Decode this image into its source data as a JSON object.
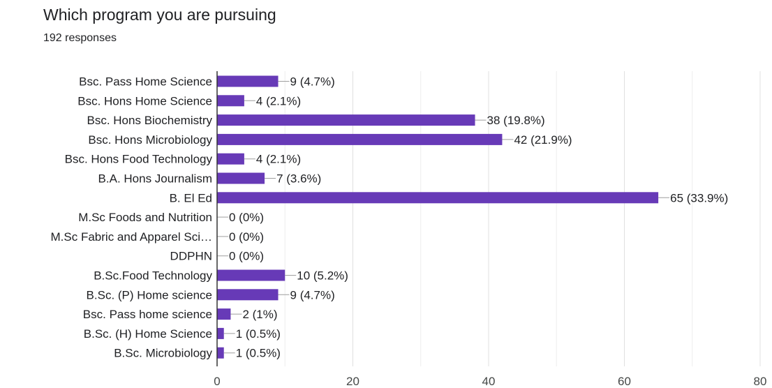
{
  "header": {
    "title": "Which program you are pursuing",
    "responses": "192 responses"
  },
  "chart_data": {
    "type": "bar",
    "orientation": "horizontal",
    "title": "Which program you are pursuing",
    "xlabel": "",
    "ylabel": "",
    "xlim": [
      0,
      80
    ],
    "xticks": [
      0,
      20,
      40,
      60,
      80
    ],
    "grid": true,
    "bar_color": "#673ab7",
    "categories": [
      "Bsc. Pass Home Science",
      "Bsc. Hons Home Science",
      "Bsc. Hons Biochemistry",
      "Bsc. Hons Microbiology",
      "Bsc. Hons Food Technology",
      "B.A. Hons Journalism",
      "B. El Ed",
      "M.Sc Foods and Nutrition",
      "M.Sc Fabric and Apparel Sci…",
      "DDPHN",
      "B.Sc.Food Technology",
      "B.Sc. (P) Home science",
      "Bsc. Pass home science",
      "B.Sc. (H) Home Science",
      "B.Sc. Microbiology"
    ],
    "values": [
      9,
      4,
      38,
      42,
      4,
      7,
      65,
      0,
      0,
      0,
      10,
      9,
      2,
      1,
      1
    ],
    "value_labels": [
      "9 (4.7%)",
      "4 (2.1%)",
      "38 (19.8%)",
      "42 (21.9%)",
      "4 (2.1%)",
      "7 (3.6%)",
      "65 (33.9%)",
      "0 (0%)",
      "0 (0%)",
      "0 (0%)",
      "10 (5.2%)",
      "9 (4.7%)",
      "2 (1%)",
      "1 (0.5%)",
      "1 (0.5%)"
    ]
  }
}
